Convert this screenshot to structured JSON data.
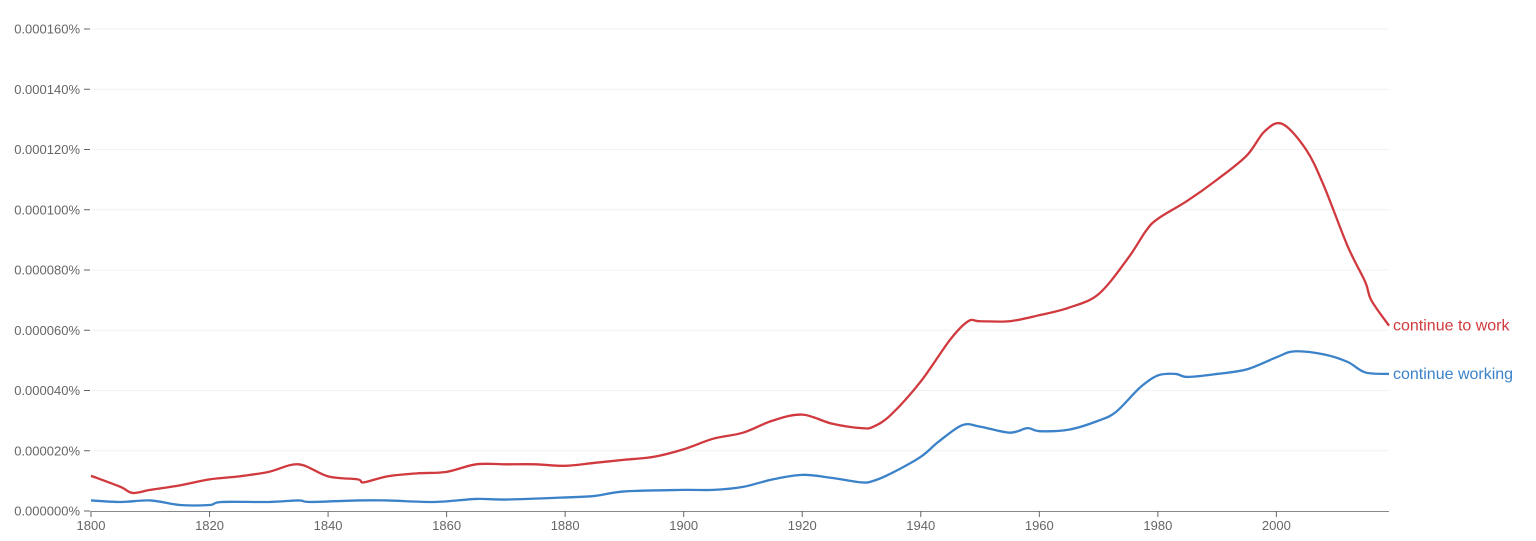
{
  "chart_data": {
    "type": "line",
    "title": "",
    "xlabel": "",
    "ylabel": "",
    "xlim": [
      1800,
      2019
    ],
    "ylim": [
      0,
      0.00016
    ],
    "grid": true,
    "legend": "inline labels at right end of lines",
    "x_ticks": [
      "1800",
      "1820",
      "1840",
      "1860",
      "1880",
      "1900",
      "1920",
      "1940",
      "1960",
      "1980",
      "2000"
    ],
    "y_ticks": [
      "0.000000%",
      "0.000020%",
      "0.000040%",
      "0.000060%",
      "0.000080%",
      "0.000100%",
      "0.000120%",
      "0.000140%",
      "0.000160%"
    ],
    "y_unit": "percent",
    "series": [
      {
        "name": "continue to work",
        "color": "#d0393e",
        "x": [
          1800,
          1805,
          1807,
          1810,
          1815,
          1820,
          1825,
          1830,
          1835,
          1840,
          1845,
          1846,
          1850,
          1855,
          1860,
          1865,
          1870,
          1875,
          1880,
          1885,
          1890,
          1895,
          1900,
          1905,
          1910,
          1915,
          1920,
          1925,
          1930,
          1932,
          1935,
          1940,
          1945,
          1948,
          1950,
          1955,
          1960,
          1965,
          1970,
          1975,
          1978,
          1980,
          1985,
          1990,
          1995,
          1998,
          2001,
          2005,
          2008,
          2012,
          2015,
          2016,
          2019
        ],
        "y": [
          1.17e-05,
          8e-06,
          6e-06,
          7e-06,
          8.5e-06,
          1.05e-05,
          1.15e-05,
          1.3e-05,
          1.55e-05,
          1.15e-05,
          1.05e-05,
          9.5e-06,
          1.15e-05,
          1.25e-05,
          1.3e-05,
          1.55e-05,
          1.55e-05,
          1.55e-05,
          1.5e-05,
          1.6e-05,
          1.7e-05,
          1.8e-05,
          2.05e-05,
          2.4e-05,
          2.6e-05,
          3e-05,
          3.2e-05,
          2.9e-05,
          2.75e-05,
          2.8e-05,
          3.2e-05,
          4.3e-05,
          5.7e-05,
          6.3e-05,
          6.3e-05,
          6.3e-05,
          6.5e-05,
          6.75e-05,
          7.2e-05,
          8.4e-05,
          9.3e-05,
          9.7e-05,
          0.000103,
          0.00011,
          0.000118,
          0.000126,
          0.0001285,
          0.00012,
          0.000108,
          8.8e-05,
          7.6e-05,
          7e-05,
          6.15e-05
        ]
      },
      {
        "name": "continue working",
        "color": "#3b82c9",
        "x": [
          1800,
          1805,
          1810,
          1815,
          1820,
          1822,
          1830,
          1835,
          1837,
          1845,
          1850,
          1858,
          1865,
          1870,
          1880,
          1885,
          1890,
          1900,
          1905,
          1910,
          1915,
          1920,
          1925,
          1930,
          1932,
          1935,
          1940,
          1943,
          1947,
          1950,
          1955,
          1958,
          1960,
          1965,
          1970,
          1973,
          1977,
          1980,
          1983,
          1985,
          1990,
          1995,
          2000,
          2003,
          2008,
          2012,
          2015,
          2019
        ],
        "y": [
          3.5e-06,
          3e-06,
          3.5e-06,
          2e-06,
          2e-06,
          3e-06,
          3e-06,
          3.5e-06,
          3e-06,
          3.5e-06,
          3.5e-06,
          3e-06,
          4e-06,
          3.8e-06,
          4.5e-06,
          5e-06,
          6.5e-06,
          7e-06,
          7e-06,
          8e-06,
          1.05e-05,
          1.2e-05,
          1.1e-05,
          9.5e-06,
          1e-05,
          1.25e-05,
          1.8e-05,
          2.3e-05,
          2.85e-05,
          2.8e-05,
          2.6e-05,
          2.75e-05,
          2.65e-05,
          2.7e-05,
          3e-05,
          3.3e-05,
          4.1e-05,
          4.5e-05,
          4.55e-05,
          4.45e-05,
          4.55e-05,
          4.7e-05,
          5.1e-05,
          5.3e-05,
          5.2e-05,
          4.95e-05,
          4.6e-05,
          4.55e-05
        ]
      }
    ]
  }
}
